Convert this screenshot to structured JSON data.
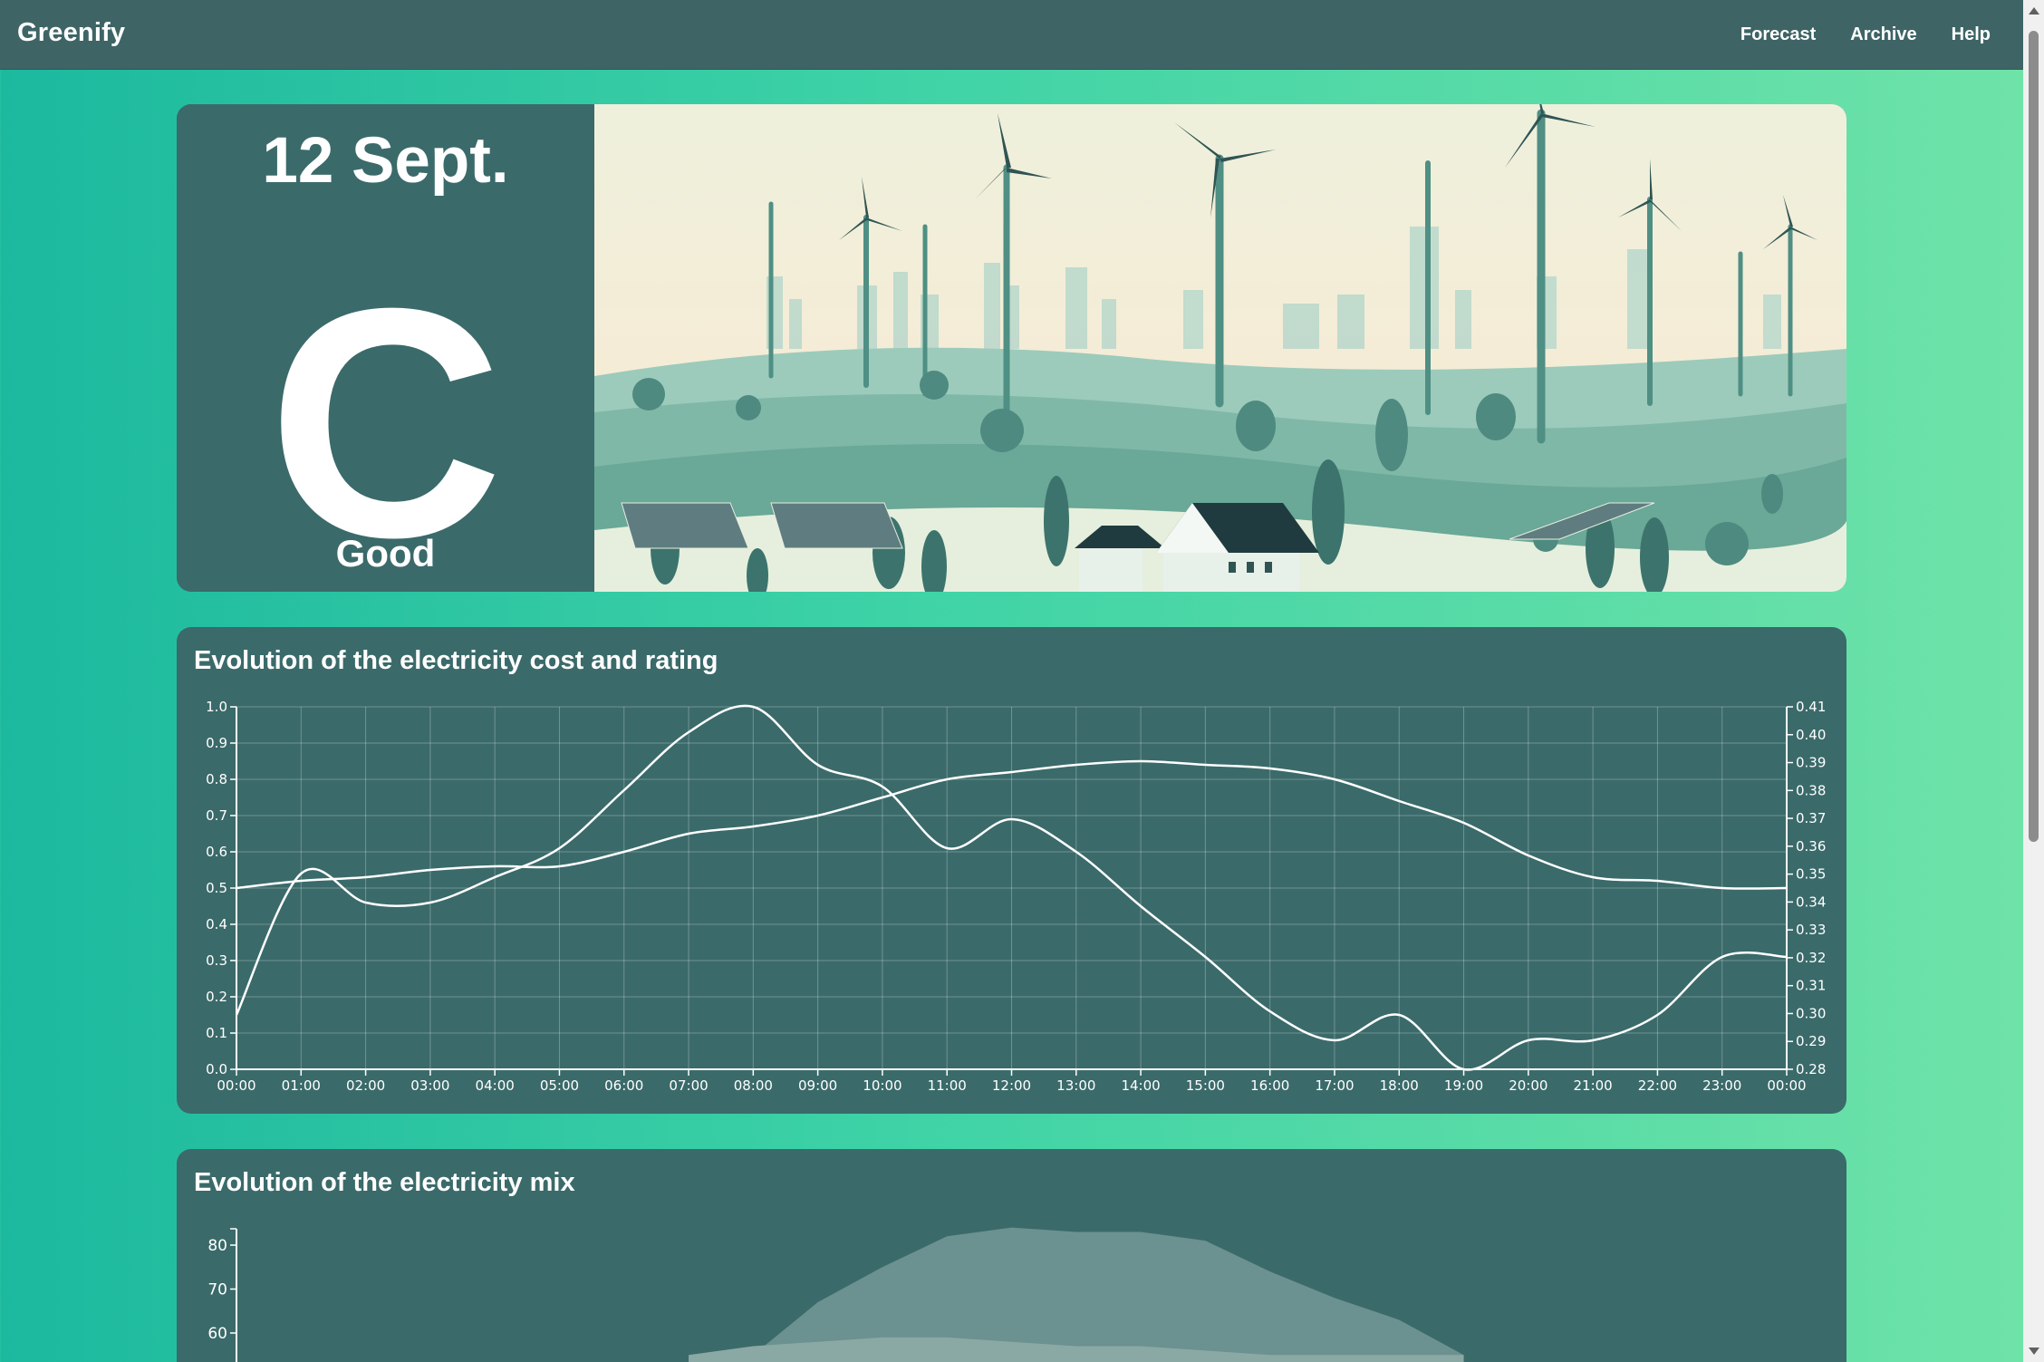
{
  "navbar": {
    "brand": "Greenify",
    "links": [
      "Forecast",
      "Archive",
      "Help"
    ]
  },
  "hero": {
    "date": "12 Sept.",
    "rating_letter": "C",
    "rating_label": "Good"
  },
  "cost_chart": {
    "title": "Evolution of the electricity cost and rating"
  },
  "mix_chart": {
    "title": "Evolution of the electricity mix"
  },
  "colors": {
    "card": "#3b6a6a",
    "navbar": "#3e6466",
    "line": "#ffffff"
  },
  "chart_data": [
    {
      "type": "line",
      "title": "Evolution of the electricity cost and rating",
      "x": [
        "00:00",
        "01:00",
        "02:00",
        "03:00",
        "04:00",
        "05:00",
        "06:00",
        "07:00",
        "08:00",
        "09:00",
        "10:00",
        "11:00",
        "12:00",
        "13:00",
        "14:00",
        "15:00",
        "16:00",
        "17:00",
        "18:00",
        "19:00",
        "20:00",
        "21:00",
        "22:00",
        "23:00",
        "00:00"
      ],
      "y_left": {
        "ticks": [
          "0.0",
          "0.1",
          "0.2",
          "0.3",
          "0.4",
          "0.5",
          "0.6",
          "0.7",
          "0.8",
          "0.9",
          "1.0"
        ],
        "range": [
          0,
          1
        ]
      },
      "y_right": {
        "ticks": [
          "0.28",
          "0.29",
          "0.30",
          "0.31",
          "0.32",
          "0.33",
          "0.34",
          "0.35",
          "0.36",
          "0.37",
          "0.38",
          "0.39",
          "0.40",
          "0.41"
        ],
        "range": [
          0.28,
          0.41
        ]
      },
      "grid": true,
      "series": [
        {
          "axis": "left",
          "values": [
            0.5,
            0.52,
            0.53,
            0.55,
            0.56,
            0.56,
            0.6,
            0.65,
            0.67,
            0.7,
            0.75,
            0.8,
            0.82,
            0.84,
            0.85,
            0.84,
            0.83,
            0.8,
            0.74,
            0.68,
            0.59,
            0.53,
            0.52,
            0.5,
            0.5
          ]
        },
        {
          "axis": "left",
          "values": [
            0.15,
            0.54,
            0.46,
            0.46,
            0.53,
            0.61,
            0.77,
            0.93,
            1.0,
            0.84,
            0.78,
            0.61,
            0.69,
            0.6,
            0.45,
            0.31,
            0.16,
            0.08,
            0.15,
            0.0,
            0.08,
            0.08,
            0.15,
            0.31,
            0.31
          ]
        }
      ]
    },
    {
      "type": "area",
      "title": "Evolution of the electricity mix",
      "y_ticks": [
        "60",
        "70",
        "80"
      ],
      "y_visible_range": [
        57,
        84
      ],
      "series": [
        {
          "values": [
            null,
            null,
            null,
            null,
            null,
            null,
            null,
            null,
            55,
            67,
            75,
            82,
            84,
            83,
            83,
            81,
            74,
            68,
            63,
            55,
            null,
            null,
            null,
            null,
            null
          ]
        },
        {
          "values": [
            null,
            null,
            null,
            null,
            null,
            null,
            null,
            55,
            57,
            58,
            59,
            59,
            58,
            57,
            57,
            56,
            55,
            55,
            55,
            55,
            null,
            null,
            null,
            null,
            null
          ]
        }
      ]
    }
  ]
}
